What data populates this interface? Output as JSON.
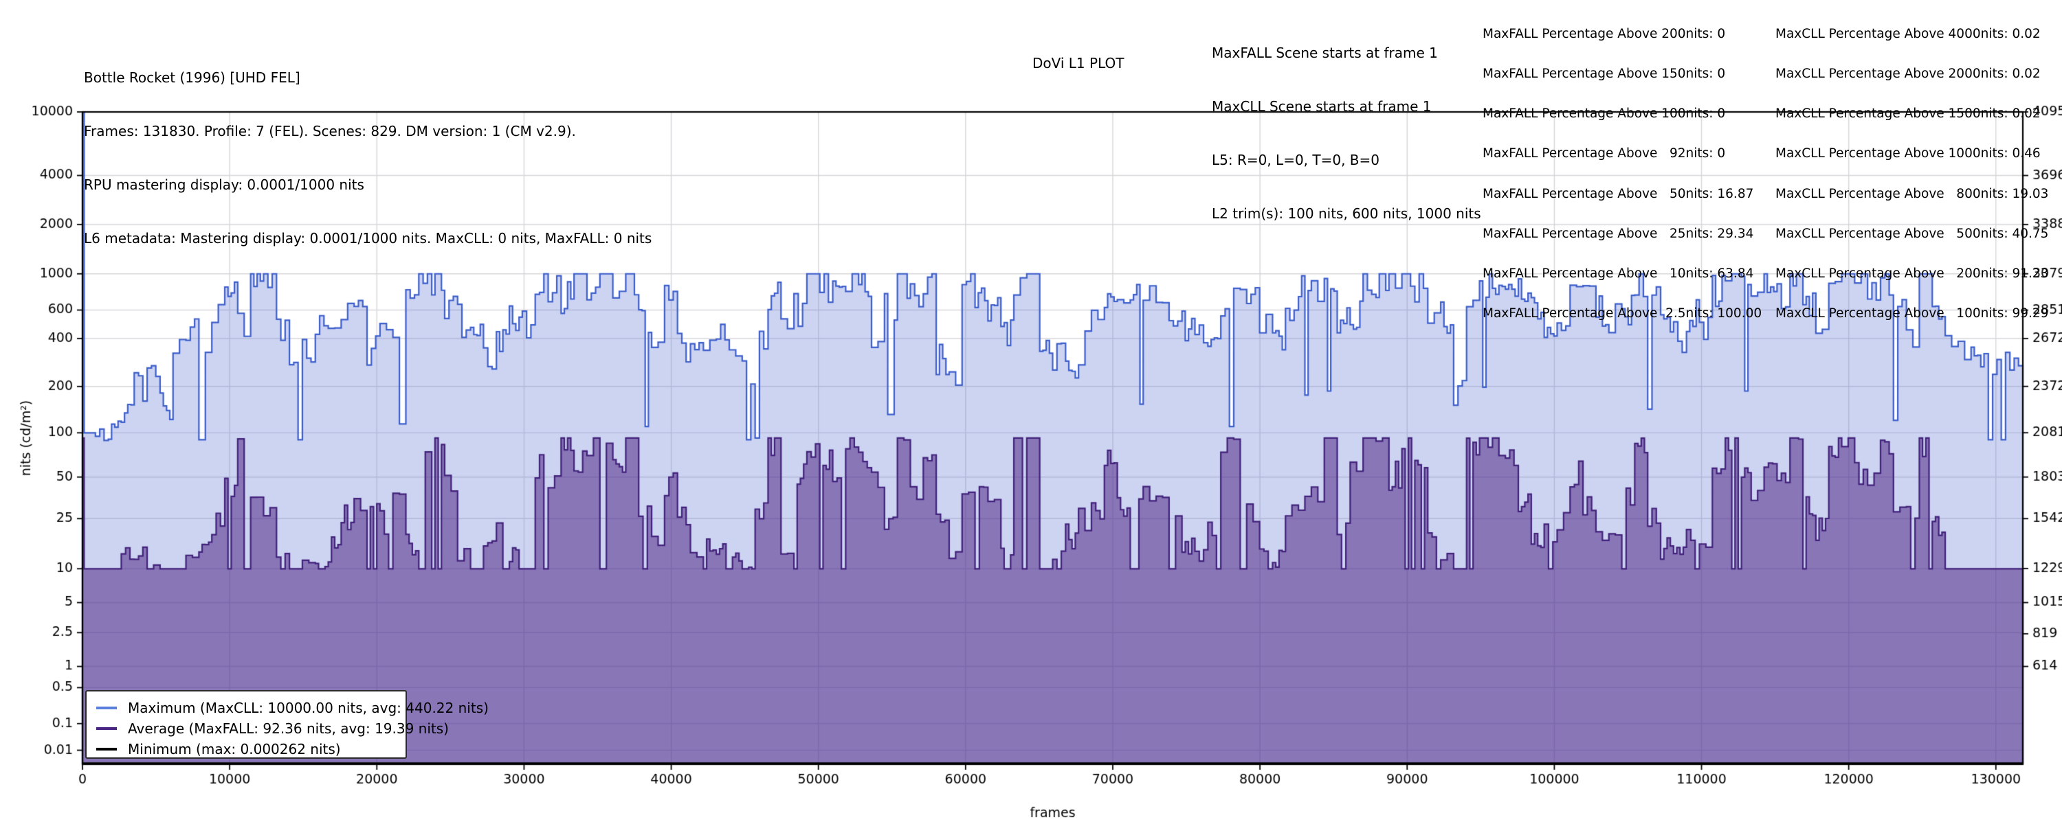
{
  "header": {
    "title": "Bottle Rocket (1996) [UHD FEL]",
    "line2": "Frames: 131830. Profile: 7 (FEL). Scenes: 829. DM version: 1 (CM v2.9).",
    "line3": "RPU mastering display: 0.0001/1000 nits",
    "line4": "L6 metadata: Mastering display: 0.0001/1000 nits. MaxCLL: 0 nits, MaxFALL: 0 nits"
  },
  "plot_title": "DoVi L1 PLOT",
  "scene_info": {
    "line1": "MaxFALL Scene starts at frame 1",
    "line2": "MaxCLL Scene starts at frame 1",
    "line3": "L5: R=0, L=0, T=0, B=0",
    "line4": "L2 trim(s): 100 nits, 600 nits, 1000 nits"
  },
  "maxfall_stats": {
    "lines": [
      "MaxFALL Percentage Above 200nits: 0",
      "MaxFALL Percentage Above 150nits: 0",
      "MaxFALL Percentage Above 100nits: 0",
      "MaxFALL Percentage Above   92nits: 0",
      "MaxFALL Percentage Above   50nits: 16.87",
      "MaxFALL Percentage Above   25nits: 29.34",
      "MaxFALL Percentage Above   10nits: 63.84",
      "MaxFALL Percentage Above  2.5nits: 100.00"
    ]
  },
  "maxcll_stats": {
    "lines": [
      "MaxCLL Percentage Above 4000nits: 0.02",
      "MaxCLL Percentage Above 2000nits: 0.02",
      "MaxCLL Percentage Above 1500nits: 0.02",
      "MaxCLL Percentage Above 1000nits: 0.46",
      "MaxCLL Percentage Above   800nits: 19.03",
      "MaxCLL Percentage Above   500nits: 40.75",
      "MaxCLL Percentage Above   200nits: 91.23",
      "MaxCLL Percentage Above   100nits: 99.29"
    ]
  },
  "legend": {
    "items": [
      {
        "label": "Maximum (MaxCLL: 10000.00 nits, avg: 440.22 nits)",
        "color": "#5b7fdd"
      },
      {
        "label": "Average (MaxFALL: 92.36 nits, avg: 19.39 nits)",
        "color": "#4a2581"
      },
      {
        "label": "Minimum (max: 0.000262 nits)",
        "color": "#000000"
      }
    ]
  },
  "chart_data": {
    "type": "area",
    "title": "DoVi L1 PLOT",
    "xlabel": "frames",
    "ylabel": "nits (cd/m²)",
    "x_max": 131830,
    "x_ticks": [
      0,
      10000,
      20000,
      30000,
      40000,
      50000,
      60000,
      70000,
      80000,
      90000,
      100000,
      110000,
      120000,
      130000
    ],
    "y_left_ticks": [
      "10000",
      "4000",
      "2000",
      "1000",
      "600",
      "400",
      "200",
      "100",
      "50",
      "25",
      "10",
      "5",
      "2.5",
      "1",
      "0.5",
      "0.1",
      "0.01"
    ],
    "y_right_ticks": [
      "4095",
      "3696",
      "3388",
      "3079",
      "2851",
      "2672",
      "2372",
      "2081",
      "1803",
      "1542",
      "1229",
      "1015",
      "819",
      "614"
    ],
    "y_scale": "PQ (SMPTE ST 2084) perceptual quantizer, 12-bit codes on right axis",
    "grid": true,
    "legend_position": "lower-left",
    "series": [
      {
        "name": "Maximum",
        "maxcll_nits": 10000.0,
        "avg_nits": 440.22
      },
      {
        "name": "Average",
        "maxfall_nits": 92.36,
        "avg_nits": 19.39
      },
      {
        "name": "Minimum",
        "max_nits": 0.000262
      }
    ],
    "samples_note": "per-scene envelope sampled every ~880 frames; first sample is the frame-1 MaxCLL/MaxFALL spike",
    "max_samples": [
      10000,
      100,
      105,
      120,
      200,
      260,
      150,
      380,
      420,
      350,
      600,
      700,
      450,
      900,
      950,
      420,
      300,
      360,
      480,
      420,
      550,
      700,
      350,
      450,
      520,
      650,
      980,
      900,
      600,
      520,
      420,
      300,
      380,
      500,
      480,
      850,
      800,
      700,
      950,
      700,
      900,
      850,
      950,
      500,
      420,
      800,
      350,
      320,
      330,
      400,
      380,
      250,
      420,
      700,
      450,
      600,
      950,
      850,
      900,
      980,
      900,
      450,
      600,
      900,
      700,
      950,
      300,
      200,
      850,
      750,
      650,
      420,
      950,
      900,
      350,
      300,
      250,
      350,
      600,
      700,
      550,
      700,
      750,
      600,
      500,
      480,
      400,
      350,
      500,
      900,
      750,
      550,
      400,
      550,
      800,
      750,
      850,
      500,
      550,
      950,
      900,
      800,
      950,
      850,
      600,
      550,
      180,
      650,
      900,
      950,
      800,
      750,
      600,
      520,
      550,
      850,
      700,
      600,
      550,
      580,
      900,
      650,
      480,
      420,
      550,
      450,
      800,
      950,
      850,
      700,
      900,
      750,
      950,
      600,
      450,
      900,
      950,
      850,
      750,
      950,
      550,
      450,
      980,
      500,
      420,
      350,
      300,
      280,
      280,
      280
    ],
    "avg_samples": [
      92.36,
      10,
      10,
      12,
      14,
      10,
      11,
      10,
      12,
      13,
      22,
      45,
      88,
      35,
      24,
      12,
      10,
      13,
      10,
      14,
      25,
      35,
      28,
      22,
      30,
      15,
      88,
      75,
      40,
      12,
      10,
      14,
      25,
      13,
      30,
      55,
      45,
      88,
      60,
      85,
      88,
      55,
      88,
      30,
      18,
      45,
      25,
      12,
      16,
      14,
      13,
      10,
      30,
      88,
      12,
      50,
      75,
      60,
      40,
      88,
      70,
      45,
      20,
      88,
      35,
      60,
      25,
      12,
      45,
      42,
      30,
      12,
      88,
      88,
      10,
      11,
      18,
      25,
      30,
      60,
      28,
      32,
      35,
      30,
      25,
      15,
      12,
      20,
      80,
      88,
      25,
      15,
      12,
      25,
      30,
      35,
      88,
      20,
      50,
      88,
      85,
      50,
      88,
      55,
      15,
      12,
      10,
      80,
      88,
      85,
      60,
      30,
      18,
      20,
      25,
      50,
      30,
      20,
      15,
      35,
      80,
      25,
      14,
      12,
      20,
      14,
      55,
      88,
      60,
      40,
      70,
      45,
      88,
      30,
      20,
      85,
      88,
      50,
      45,
      88,
      35,
      25,
      80,
      20,
      10,
      10,
      10,
      10,
      10,
      10
    ],
    "min_value": 0.000262,
    "colors": {
      "max_line": "#3b5dcb",
      "max_fill": "rgba(88,112,212,0.30)",
      "avg_line": "#41207a",
      "avg_fill": "rgba(80,40,135,0.55)",
      "min_line": "#000000",
      "grid": "#d7d7da",
      "axis": "#000000"
    }
  }
}
